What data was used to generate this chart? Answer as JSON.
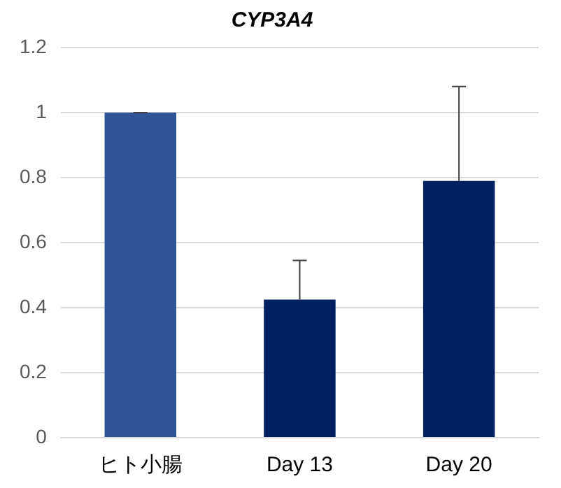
{
  "chart_data": {
    "type": "bar",
    "title": "CYP3A4",
    "categories": [
      "ヒト小腸",
      "Day 13",
      "Day 20"
    ],
    "values": [
      1.0,
      0.425,
      0.79
    ],
    "colors": [
      "#2f5597",
      "#002060",
      "#002060"
    ],
    "errors": [
      [
        1.0,
        1.0
      ],
      [
        0.425,
        0.545
      ],
      [
        0.79,
        1.08
      ]
    ],
    "ylim": [
      0,
      1.2
    ],
    "yticks": [
      0,
      0.2,
      0.4,
      0.6,
      0.8,
      1,
      1.2
    ],
    "grid": "y"
  }
}
